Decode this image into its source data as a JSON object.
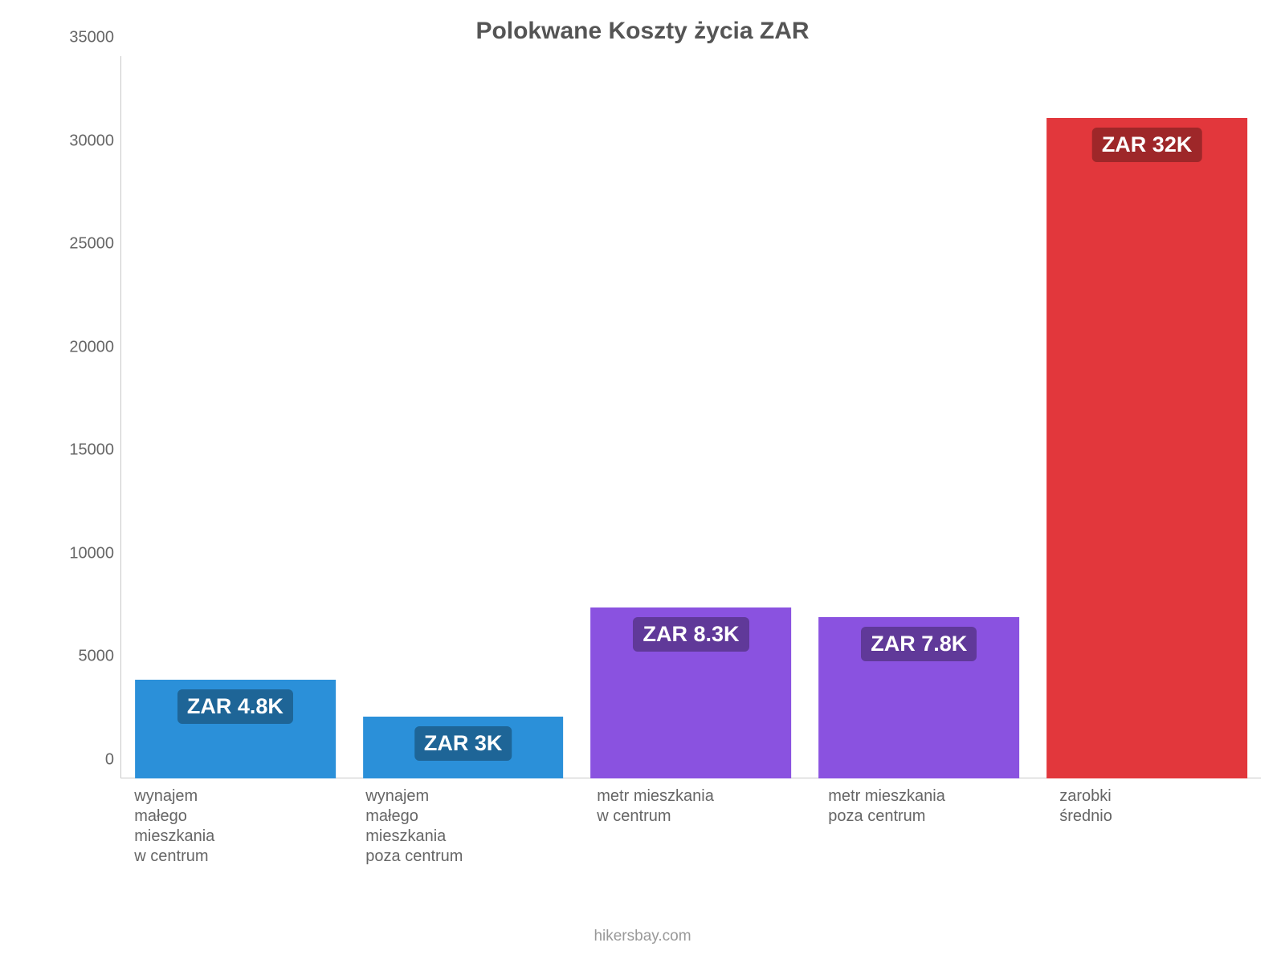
{
  "chart": {
    "type": "bar",
    "title": "Polokwane Koszty życia ZAR",
    "title_fontsize": 30,
    "title_color": "#555555",
    "background_color": "#ffffff",
    "axis_color": "#c8c8c8",
    "tick_label_color": "#666666",
    "tick_label_fontsize": 20,
    "x_label_fontsize": 20,
    "ylim": [
      0,
      35000
    ],
    "ytick_step": 5000,
    "yticks": [
      0,
      5000,
      10000,
      15000,
      20000,
      25000,
      30000,
      35000
    ],
    "bar_width": 0.88,
    "categories": [
      "wynajem\nmałego\nmieszkania\nw centrum",
      "wynajem\nmałego\nmieszkania\npoza centrum",
      "metr mieszkania\nw centrum",
      "metr mieszkania\npoza centrum",
      "zarobki\nśrednio"
    ],
    "values": [
      4800,
      3000,
      8300,
      7800,
      32000
    ],
    "value_labels": [
      "ZAR 4.8K",
      "ZAR 3K",
      "ZAR 8.3K",
      "ZAR 7.8K",
      "ZAR 32K"
    ],
    "bar_colors": [
      "#2b90d9",
      "#2b90d9",
      "#8a52e0",
      "#8a52e0",
      "#e2373c"
    ],
    "label_bg_colors": [
      "#1e6597",
      "#1e6597",
      "#603999",
      "#603999",
      "#9e2729"
    ],
    "label_fontsize": 27,
    "attribution": "hikersbay.com",
    "attribution_fontsize": 19,
    "attribution_color": "#999999"
  }
}
